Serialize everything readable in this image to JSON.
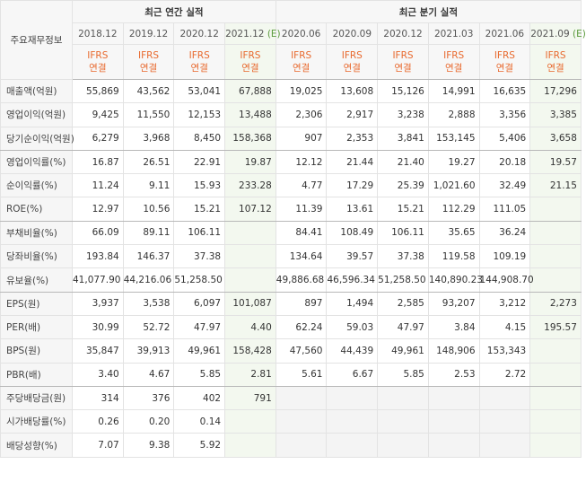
{
  "header": {
    "corner": "주요재무정보",
    "groups": [
      "최근 연간 실적",
      "최근 분기 실적"
    ]
  },
  "periods": [
    "2018.12",
    "2019.12",
    "2020.12",
    {
      "text": "2021.12",
      "mark": "(E)"
    },
    "2020.06",
    "2020.09",
    "2020.12",
    "2021.03",
    "2021.06",
    {
      "text": "2021.09",
      "mark": "(E)"
    }
  ],
  "basis": [
    [
      "IFRS",
      "연결"
    ],
    [
      "IFRS",
      "연결"
    ],
    [
      "IFRS",
      "연결"
    ],
    [
      "IFRS",
      "연결"
    ],
    [
      "IFRS",
      "연결"
    ],
    [
      "IFRS",
      "연결"
    ],
    [
      "IFRS",
      "연결"
    ],
    [
      "IFRS",
      "연결"
    ],
    [
      "IFRS",
      "연결"
    ],
    [
      "IFRS",
      "연결"
    ]
  ],
  "rows": [
    {
      "label": "매출액(억원)",
      "values": [
        "55,869",
        "43,562",
        "53,041",
        "67,888",
        "19,025",
        "13,608",
        "15,126",
        "14,991",
        "16,635",
        "17,296"
      ]
    },
    {
      "label": "영업이익(억원)",
      "values": [
        "9,425",
        "11,550",
        "12,153",
        "13,488",
        "2,306",
        "2,917",
        "3,238",
        "2,888",
        "3,356",
        "3,385"
      ]
    },
    {
      "label": "당기순이익(억원)",
      "values": [
        "6,279",
        "3,968",
        "8,450",
        "158,368",
        "907",
        "2,353",
        "3,841",
        "153,145",
        "5,406",
        "3,658"
      ]
    },
    {
      "label": "영업이익률(%)",
      "values": [
        "16.87",
        "26.51",
        "22.91",
        "19.87",
        "12.12",
        "21.44",
        "21.40",
        "19.27",
        "20.18",
        "19.57"
      ]
    },
    {
      "label": "순이익률(%)",
      "values": [
        "11.24",
        "9.11",
        "15.93",
        "233.28",
        "4.77",
        "17.29",
        "25.39",
        "1,021.60",
        "32.49",
        "21.15"
      ]
    },
    {
      "label": "ROE(%)",
      "values": [
        "12.97",
        "10.56",
        "15.21",
        "107.12",
        "11.39",
        "13.61",
        "15.21",
        "112.29",
        "111.05",
        null
      ]
    },
    {
      "label": "부채비율(%)",
      "values": [
        "66.09",
        "89.11",
        "106.11",
        null,
        "84.41",
        "108.49",
        "106.11",
        "35.65",
        "36.24",
        null
      ]
    },
    {
      "label": "당좌비율(%)",
      "values": [
        "193.84",
        "146.37",
        "37.38",
        null,
        "134.64",
        "39.57",
        "37.38",
        "119.58",
        "109.19",
        null
      ]
    },
    {
      "label": "유보율(%)",
      "values": [
        "41,077.90",
        "44,216.06",
        "51,258.50",
        null,
        "49,886.68",
        "46,596.34",
        "51,258.50",
        "140,890.23",
        "144,908.70",
        null
      ]
    },
    {
      "label": "EPS(원)",
      "values": [
        "3,937",
        "3,538",
        "6,097",
        "101,087",
        "897",
        "1,494",
        "2,585",
        "93,207",
        "3,212",
        "2,273"
      ]
    },
    {
      "label": "PER(배)",
      "values": [
        "30.99",
        "52.72",
        "47.97",
        "4.40",
        "62.24",
        "59.03",
        "47.97",
        "3.84",
        "4.15",
        "195.57"
      ]
    },
    {
      "label": "BPS(원)",
      "values": [
        "35,847",
        "39,913",
        "49,961",
        "158,428",
        "47,560",
        "44,439",
        "49,961",
        "148,906",
        "153,343",
        null
      ]
    },
    {
      "label": "PBR(배)",
      "values": [
        "3.40",
        "4.67",
        "5.85",
        "2.81",
        "5.61",
        "6.67",
        "5.85",
        "2.53",
        "2.72",
        null
      ]
    },
    {
      "label": "주당배당금(원)",
      "values": [
        "314",
        "376",
        "402",
        "791",
        null,
        null,
        null,
        null,
        null,
        null
      ]
    },
    {
      "label": "시가배당률(%)",
      "values": [
        "0.26",
        "0.20",
        "0.14",
        null,
        null,
        null,
        null,
        null,
        null,
        null
      ]
    },
    {
      "label": "배당성향(%)",
      "values": [
        "7.07",
        "9.38",
        "5.92",
        null,
        null,
        null,
        null,
        null,
        null,
        null
      ]
    }
  ]
}
